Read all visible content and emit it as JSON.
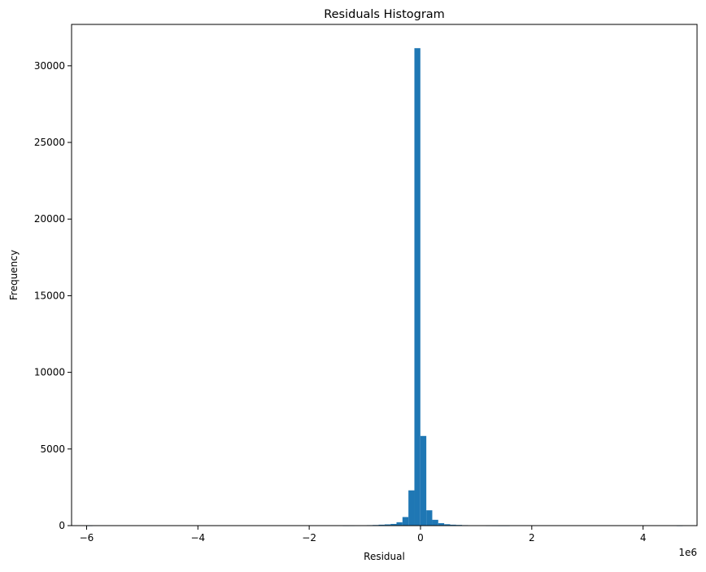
{
  "chart_data": {
    "type": "bar",
    "title": "Residuals Histogram",
    "xlabel": "Residual",
    "ylabel": "Frequency",
    "x_offset_text": "1e6",
    "xlim": [
      -6.27,
      4.97
    ],
    "ylim": [
      0,
      32700
    ],
    "x_ticks": [
      {
        "value": -6,
        "label": "−6"
      },
      {
        "value": -4,
        "label": "−4"
      },
      {
        "value": -2,
        "label": "−2"
      },
      {
        "value": 0,
        "label": "0"
      },
      {
        "value": 2,
        "label": "2"
      },
      {
        "value": 4,
        "label": "4"
      }
    ],
    "y_ticks": [
      {
        "value": 0,
        "label": "0"
      },
      {
        "value": 5000,
        "label": "5000"
      },
      {
        "value": 10000,
        "label": "10000"
      },
      {
        "value": 15000,
        "label": "15000"
      },
      {
        "value": 20000,
        "label": "20000"
      },
      {
        "value": 25000,
        "label": "25000"
      },
      {
        "value": 30000,
        "label": "30000"
      }
    ],
    "grid": false,
    "legend": "none",
    "bar_color": "#1f77b4",
    "bins": {
      "start": -6.0,
      "width": 0.1071,
      "count": 100,
      "counts": [
        1,
        0,
        0,
        0,
        0,
        0,
        0,
        0,
        0,
        0,
        0,
        0,
        0,
        0,
        0,
        0,
        0,
        0,
        0,
        0,
        0,
        0,
        0,
        0,
        0,
        0,
        0,
        0,
        0,
        0,
        0,
        0,
        0,
        0,
        0,
        0,
        0,
        0,
        0,
        0,
        0,
        0,
        0,
        2,
        3,
        5,
        10,
        30,
        40,
        60,
        80,
        110,
        220,
        560,
        2300,
        31150,
        5850,
        1000,
        380,
        160,
        90,
        60,
        45,
        30,
        20,
        12,
        8,
        3,
        2,
        1,
        1,
        0,
        0,
        0,
        0,
        0,
        0,
        0,
        0,
        0,
        0,
        0,
        0,
        0,
        0,
        0,
        0,
        0,
        0,
        0,
        0,
        0,
        0,
        0,
        0,
        0,
        0,
        0,
        0,
        1
      ]
    }
  }
}
